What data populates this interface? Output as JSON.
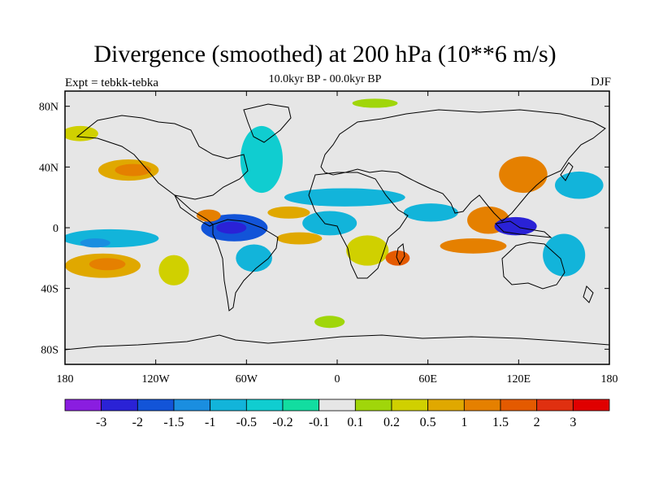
{
  "chart_data": {
    "type": "heatmap",
    "title": "Divergence (smoothed) at 200 hPa (10**6 m/s)",
    "left_label": "Expt = tebkk-tebka",
    "center_label": "10.0kyr BP - 00.0kyr BP",
    "right_label": "DJF",
    "x_ticks": [
      {
        "label": "180",
        "lon": -180
      },
      {
        "label": "120W",
        "lon": -120
      },
      {
        "label": "60W",
        "lon": -60
      },
      {
        "label": "0",
        "lon": 0
      },
      {
        "label": "60E",
        "lon": 60
      },
      {
        "label": "120E",
        "lon": 120
      },
      {
        "label": "180",
        "lon": 180
      }
    ],
    "y_ticks": [
      {
        "label": "80N",
        "lat": 80
      },
      {
        "label": "40N",
        "lat": 40
      },
      {
        "label": "0",
        "lat": 0
      },
      {
        "label": "40S",
        "lat": -40
      },
      {
        "label": "80S",
        "lat": -80
      }
    ],
    "xlim": [
      -180,
      180
    ],
    "ylim": [
      -90,
      90
    ],
    "colorbar": {
      "labels": [
        "-3",
        "-2",
        "-1.5",
        "-1",
        "-0.5",
        "-0.2",
        "-0.1",
        "0.1",
        "0.2",
        "0.5",
        "1",
        "1.5",
        "2",
        "3"
      ],
      "colors": [
        "#8a1de0",
        "#2a22d6",
        "#1254d8",
        "#1a8ee0",
        "#12b4da",
        "#10cdd0",
        "#12dda0",
        "#e6e6e6",
        "#a0d60a",
        "#d0d000",
        "#e0a800",
        "#e58000",
        "#e45a00",
        "#e03010",
        "#e00000"
      ]
    },
    "regions": [
      {
        "lon": -138,
        "lat": 38,
        "rlon": 20,
        "rlat": 7,
        "color": "#e0a800"
      },
      {
        "lon": -135,
        "lat": 38,
        "rlon": 12,
        "rlat": 4,
        "color": "#e58000"
      },
      {
        "lon": -150,
        "lat": -7,
        "rlon": 32,
        "rlat": 6,
        "color": "#12b4da"
      },
      {
        "lon": -160,
        "lat": -10,
        "rlon": 10,
        "rlat": 3,
        "color": "#1a8ee0"
      },
      {
        "lon": -155,
        "lat": -25,
        "rlon": 25,
        "rlat": 8,
        "color": "#e0a800"
      },
      {
        "lon": -152,
        "lat": -24,
        "rlon": 12,
        "rlat": 4,
        "color": "#e58000"
      },
      {
        "lon": -108,
        "lat": -28,
        "rlon": 10,
        "rlat": 10,
        "color": "#d0d000"
      },
      {
        "lon": -68,
        "lat": 0,
        "rlon": 22,
        "rlat": 9,
        "color": "#1254d8"
      },
      {
        "lon": -70,
        "lat": 0,
        "rlon": 10,
        "rlat": 4,
        "color": "#2a22d6"
      },
      {
        "lon": -55,
        "lat": -20,
        "rlon": 12,
        "rlat": 9,
        "color": "#12b4da"
      },
      {
        "lon": -85,
        "lat": 8,
        "rlon": 8,
        "rlat": 4,
        "color": "#e58000"
      },
      {
        "lon": -32,
        "lat": 10,
        "rlon": 14,
        "rlat": 4,
        "color": "#e0a800"
      },
      {
        "lon": -25,
        "lat": -7,
        "rlon": 15,
        "rlat": 4,
        "color": "#e0a800"
      },
      {
        "lon": -5,
        "lat": 3,
        "rlon": 18,
        "rlat": 8,
        "color": "#12b4da"
      },
      {
        "lon": 5,
        "lat": 20,
        "rlon": 40,
        "rlat": 6,
        "color": "#12b4da"
      },
      {
        "lon": -50,
        "lat": 45,
        "rlon": 14,
        "rlat": 22,
        "color": "#10cdd0"
      },
      {
        "lon": 20,
        "lat": -15,
        "rlon": 14,
        "rlat": 10,
        "color": "#d0d000"
      },
      {
        "lon": 40,
        "lat": -20,
        "rlon": 8,
        "rlat": 5,
        "color": "#e45a00"
      },
      {
        "lon": 52,
        "lat": 10,
        "rlon": 8,
        "rlat": 4,
        "color": "#e58000"
      },
      {
        "lon": 62,
        "lat": 10,
        "rlon": 18,
        "rlat": 6,
        "color": "#12b4da"
      },
      {
        "lon": 100,
        "lat": 5,
        "rlon": 14,
        "rlat": 9,
        "color": "#e58000"
      },
      {
        "lon": 118,
        "lat": 1,
        "rlon": 14,
        "rlat": 6,
        "color": "#2a22d6"
      },
      {
        "lon": 90,
        "lat": -12,
        "rlon": 22,
        "rlat": 5,
        "color": "#e58000"
      },
      {
        "lon": 150,
        "lat": -18,
        "rlon": 14,
        "rlat": 14,
        "color": "#12b4da"
      },
      {
        "lon": 123,
        "lat": 35,
        "rlon": 16,
        "rlat": 12,
        "color": "#e58000"
      },
      {
        "lon": 160,
        "lat": 28,
        "rlon": 16,
        "rlat": 9,
        "color": "#12b4da"
      },
      {
        "lon": -5,
        "lat": -62,
        "rlon": 10,
        "rlat": 4,
        "color": "#a0d60a"
      },
      {
        "lon": -170,
        "lat": 62,
        "rlon": 12,
        "rlat": 5,
        "color": "#d0d000"
      },
      {
        "lon": 25,
        "lat": 82,
        "rlon": 15,
        "rlat": 3,
        "color": "#a0d60a"
      }
    ]
  }
}
